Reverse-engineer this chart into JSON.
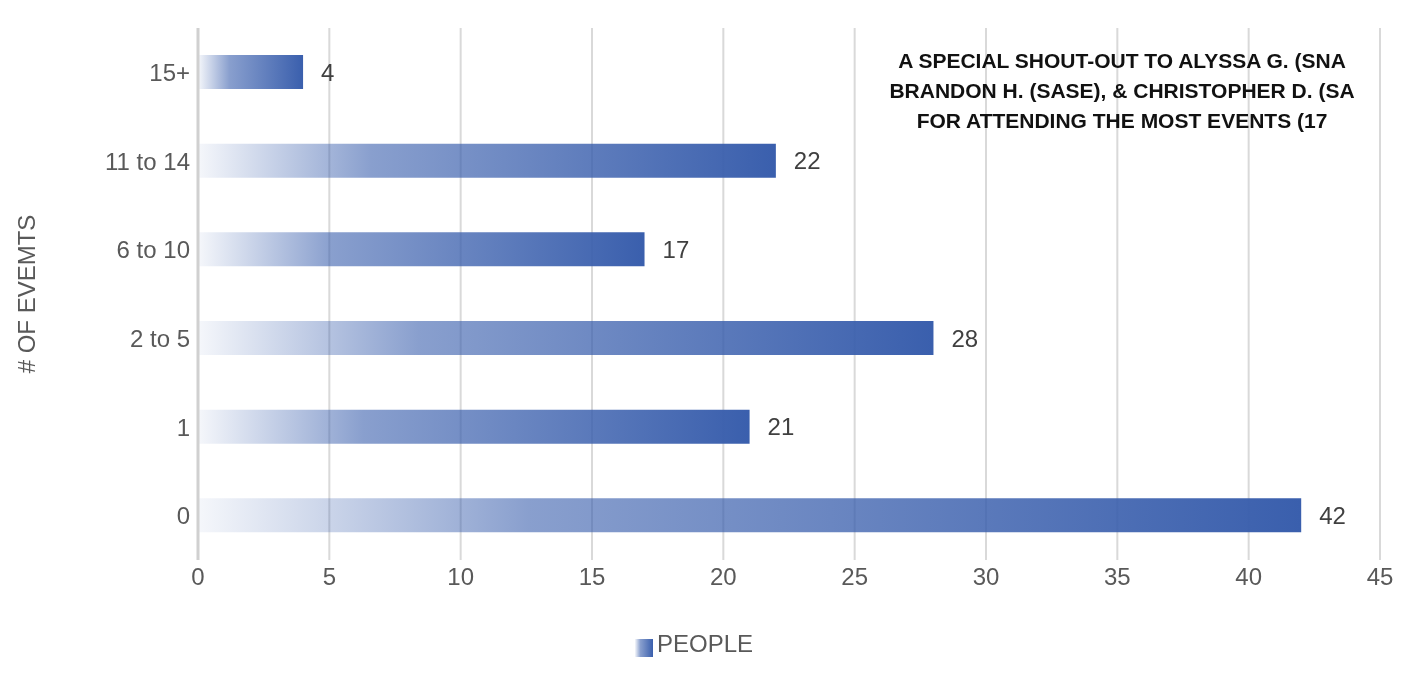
{
  "chart_data": {
    "type": "bar",
    "orientation": "horizontal",
    "ylabel": "# OF EVEMTS",
    "categories": [
      "15+",
      "11 to 14",
      "6 to 10",
      "2 to 5",
      "1",
      "0"
    ],
    "series": [
      {
        "name": "PEOPLE",
        "color": "#3a5fad",
        "values": [
          4,
          22,
          17,
          28,
          21,
          42
        ]
      }
    ],
    "xlim": [
      0,
      45
    ],
    "xticks": [
      0,
      5,
      10,
      15,
      20,
      25,
      30,
      35,
      40,
      45
    ],
    "grid": "x",
    "legend": "bottom",
    "data_labels": true,
    "annotations": [
      "A SPECIAL SHOUT-OUT TO ALYSSA G. (SNA",
      "BRANDON H. (SASE), & CHRISTOPHER D. (SA",
      "FOR ATTENDING THE MOST EVENTS (17"
    ]
  }
}
